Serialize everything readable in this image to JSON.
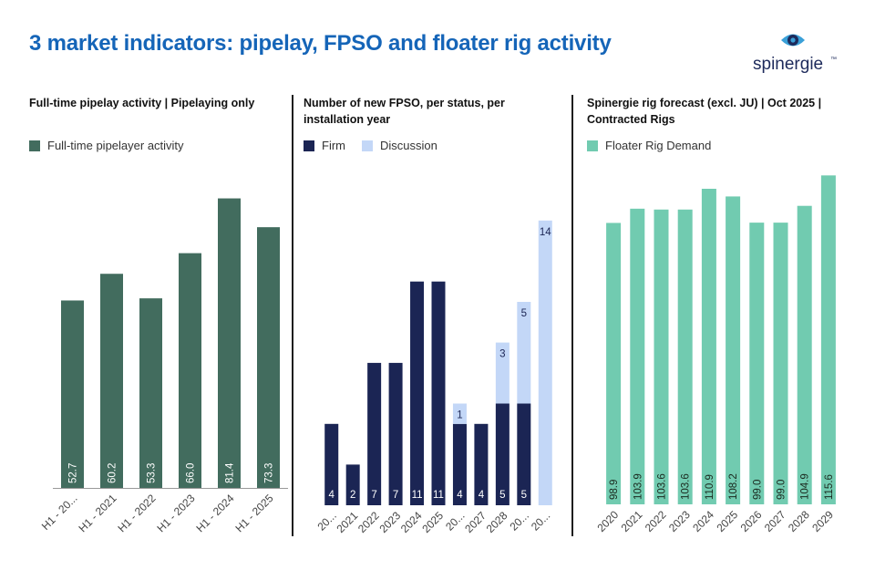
{
  "header": {
    "title": "3 market indicators: pipelay, FPSO and floater rig activity",
    "logo_text": "spinergie",
    "logo_tm": "™"
  },
  "colors": {
    "pipelay": "#426c5e",
    "firm": "#1b2554",
    "discussion": "#c3d7f7",
    "rig": "#71cbb0",
    "title": "#1565b8"
  },
  "chart_data": [
    {
      "type": "bar",
      "title": "Full-time pipelay activity | Pipelaying only",
      "categories": [
        "H1 - 20...",
        "H1 - 2021",
        "H1 - 2022",
        "H1 - 2023",
        "H1 - 2024",
        "H1 - 2025"
      ],
      "series": [
        {
          "name": "Full-time pipelayer activity",
          "values": [
            52.7,
            60.2,
            53.3,
            66.0,
            81.4,
            73.3
          ],
          "labels": [
            "52.7",
            "60.2",
            "53.3",
            "66.0",
            "81.4",
            "73.3"
          ]
        }
      ],
      "ylim": [
        0,
        100
      ]
    },
    {
      "type": "bar",
      "stacked": true,
      "title": "Number of new FPSO, per status, per installation year",
      "categories": [
        "20...",
        "2021",
        "2022",
        "2023",
        "2024",
        "2025",
        "20...",
        "2027",
        "2028",
        "20...",
        "20..."
      ],
      "series": [
        {
          "name": "Firm",
          "values": [
            4,
            2,
            7,
            7,
            11,
            11,
            4,
            4,
            5,
            5,
            0
          ],
          "labels": [
            "4",
            "2",
            "7",
            "7",
            "11",
            "11",
            "4",
            "4",
            "5",
            "5",
            ""
          ]
        },
        {
          "name": "Discussion",
          "values": [
            0,
            0,
            0,
            0,
            0,
            0,
            1,
            0,
            3,
            5,
            14
          ],
          "labels": [
            "",
            "",
            "",
            "",
            "",
            "",
            "1",
            "",
            "3",
            "5",
            "14"
          ]
        }
      ],
      "ylim": [
        0,
        15
      ]
    },
    {
      "type": "bar",
      "title": "Spinergie rig forecast (excl. JU) | Oct 2025 | Contracted Rigs",
      "categories": [
        "2020",
        "2021",
        "2022",
        "2023",
        "2024",
        "2025",
        "2026",
        "2027",
        "2028",
        "2029"
      ],
      "series": [
        {
          "name": "Floater Rig Demand",
          "values": [
            98.9,
            103.9,
            103.6,
            103.6,
            110.9,
            108.2,
            99.0,
            99.0,
            104.9,
            115.6
          ],
          "labels": [
            "98.9",
            "103.9",
            "103.6",
            "103.6",
            "110.9",
            "108.2",
            "99.0",
            "99.0",
            "104.9",
            "115.6"
          ]
        }
      ],
      "ylim": [
        0,
        130
      ]
    }
  ]
}
